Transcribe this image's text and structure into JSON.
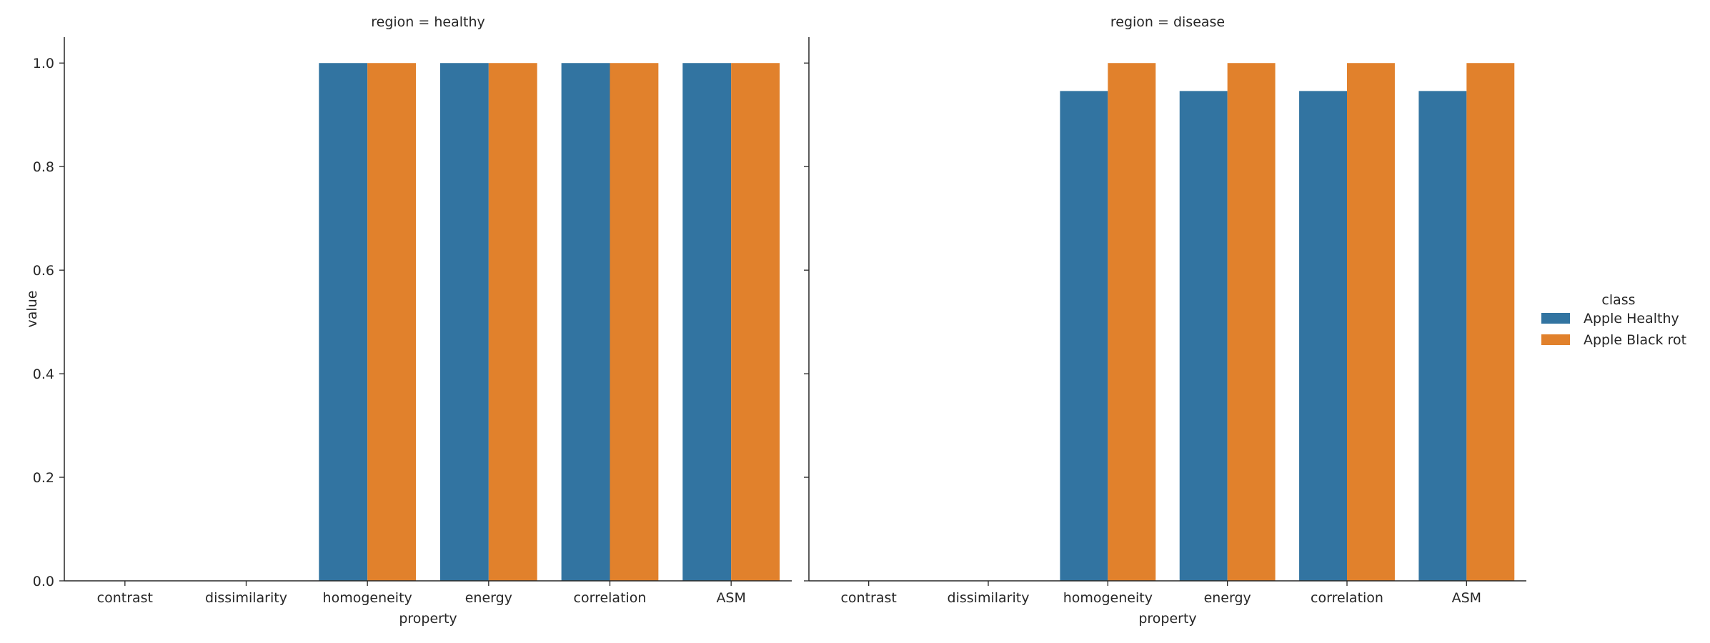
{
  "chart_data": {
    "type": "bar",
    "facet_label": "region",
    "facets": [
      {
        "title": "region = healthy",
        "categories": [
          "contrast",
          "dissimilarity",
          "homogeneity",
          "energy",
          "correlation",
          "ASM"
        ],
        "series": [
          {
            "name": "Apple Healthy",
            "values": [
              0.0,
              0.0,
              1.0,
              1.0,
              1.0,
              1.0
            ]
          },
          {
            "name": "Apple Black rot",
            "values": [
              0.0,
              0.0,
              1.0,
              1.0,
              1.0,
              1.0
            ]
          }
        ]
      },
      {
        "title": "region = disease",
        "categories": [
          "contrast",
          "dissimilarity",
          "homogeneity",
          "energy",
          "correlation",
          "ASM"
        ],
        "series": [
          {
            "name": "Apple Healthy",
            "values": [
              0.0,
              0.0,
              0.946,
              0.946,
              0.946,
              0.946
            ]
          },
          {
            "name": "Apple Black rot",
            "values": [
              0.0,
              0.0,
              1.0,
              1.0,
              1.0,
              1.0
            ]
          }
        ]
      }
    ],
    "xlabel": "property",
    "ylabel": "value",
    "ylim": [
      0,
      1.05
    ],
    "yticks": [
      "0.0",
      "0.2",
      "0.4",
      "0.6",
      "0.8",
      "1.0"
    ],
    "grid": false,
    "legend": {
      "title": "class",
      "placement": "right",
      "entries": [
        "Apple Healthy",
        "Apple Black rot"
      ]
    },
    "colors": {
      "Apple Healthy": "#3274a1",
      "Apple Black rot": "#e1812c"
    }
  }
}
